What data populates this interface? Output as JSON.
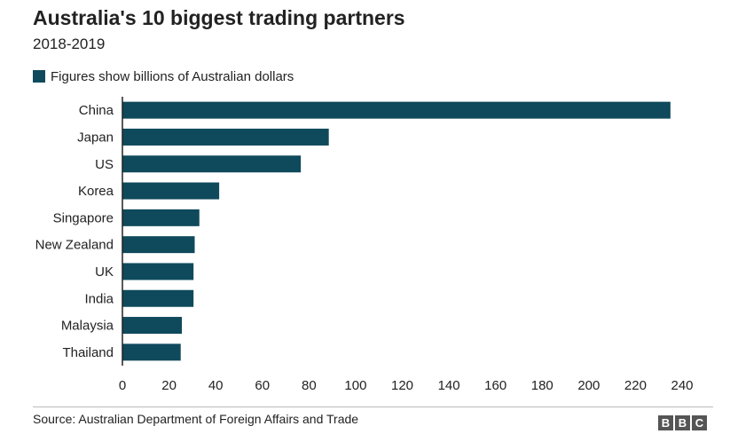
{
  "header": {
    "title": "Australia's 10 biggest trading partners",
    "subtitle": "2018-2019"
  },
  "legend": {
    "label": "Figures show billions of Australian dollars",
    "color": "#0f4a5c"
  },
  "footer": {
    "source": "Source: Australian Department of Foreign Affairs and Trade",
    "logo_letters": [
      "B",
      "B",
      "C"
    ]
  },
  "chart_data": {
    "type": "bar",
    "orientation": "horizontal",
    "categories": [
      "China",
      "Japan",
      "US",
      "Korea",
      "Singapore",
      "New Zealand",
      "UK",
      "India",
      "Malaysia",
      "Thailand"
    ],
    "values": [
      235,
      88.5,
      76.5,
      41.5,
      33,
      31,
      30.5,
      30.5,
      25.5,
      25
    ],
    "xlim": [
      0,
      240
    ],
    "xticks": [
      0,
      20,
      40,
      60,
      80,
      100,
      120,
      140,
      160,
      180,
      200,
      220,
      240
    ],
    "grid": false,
    "bar_color": "#0f4a5c",
    "axis_color": "#222222"
  }
}
